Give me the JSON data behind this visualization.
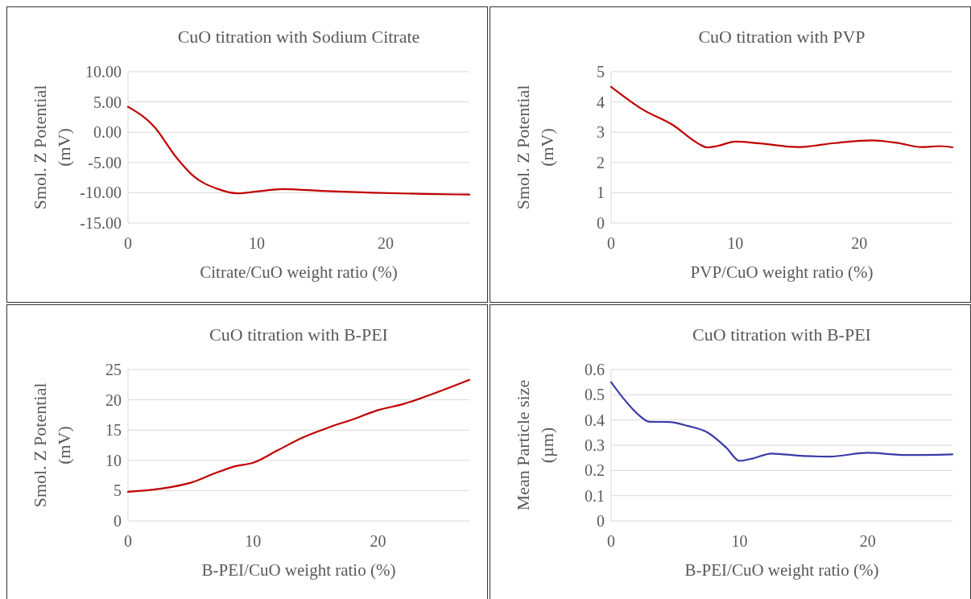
{
  "chart_data": [
    {
      "type": "line",
      "title": "CuO titration with Sodium Citrate",
      "xlabel": "Citrate/CuO weight ratio (%)",
      "ylabel": "Smol. Z Potential (mV)",
      "xlim": [
        0,
        26.5
      ],
      "xticks": [
        0,
        10,
        20
      ],
      "ylim": [
        -15,
        10
      ],
      "yticks": [
        {
          "value": 10,
          "label": "10.00"
        },
        {
          "value": 5,
          "label": "5.00"
        },
        {
          "value": 0,
          "label": "0.00"
        },
        {
          "value": -5,
          "label": "-5.00"
        },
        {
          "value": -10,
          "label": "-10.00"
        },
        {
          "value": -15,
          "label": "-15.00"
        }
      ],
      "grid": "y",
      "marker": "none",
      "line_style": "solid",
      "series": [
        {
          "color": "#c00000",
          "x": [
            0,
            2,
            3.8,
            5,
            7,
            8.5,
            10,
            12,
            15,
            19,
            23,
            26.5
          ],
          "values": [
            4.2,
            1.0,
            -4.3,
            -7.1,
            -9.4,
            -10.1,
            -9.8,
            -9.4,
            -9.7,
            -10.0,
            -10.2,
            -10.3
          ]
        }
      ]
    },
    {
      "type": "line",
      "title": "CuO titration with PVP",
      "xlabel": "PVP/CuO weight ratio (%)",
      "ylabel": "Smol. Z Potential (mV)",
      "xlim": [
        0,
        27.5
      ],
      "xticks": [
        0,
        10,
        20
      ],
      "ylim": [
        0,
        5
      ],
      "yticks": [
        0,
        1,
        2,
        3,
        4,
        5
      ],
      "grid": "y",
      "marker": "none",
      "line_style": "solid",
      "series": [
        {
          "color": "#c00000",
          "x": [
            0,
            2.5,
            5,
            7,
            7.7,
            8.5,
            10,
            12,
            15,
            18,
            21,
            23,
            25,
            26.5,
            27.5
          ],
          "values": [
            4.5,
            3.76,
            3.23,
            2.63,
            2.5,
            2.54,
            2.69,
            2.63,
            2.51,
            2.64,
            2.73,
            2.65,
            2.51,
            2.54,
            2.5
          ]
        }
      ]
    },
    {
      "type": "line",
      "title": "CuO titration with B-PEI",
      "xlabel": "B-PEI/CuO weight ratio (%)",
      "ylabel": "Smol. Z Potential (mV)",
      "xlim": [
        0,
        27.3
      ],
      "xticks": [
        0,
        10,
        20
      ],
      "ylim": [
        0,
        25
      ],
      "yticks": [
        0,
        5,
        10,
        15,
        20,
        25
      ],
      "grid": "y",
      "marker": "none",
      "line_style": "solid",
      "series": [
        {
          "color": "#c00000",
          "x": [
            0,
            2.5,
            5,
            7,
            8.5,
            10,
            12,
            14,
            16,
            18,
            20,
            22,
            24,
            27.3
          ],
          "values": [
            4.8,
            5.3,
            6.3,
            7.9,
            9.0,
            9.6,
            11.7,
            13.8,
            15.4,
            16.8,
            18.3,
            19.3,
            20.7,
            23.3
          ]
        }
      ]
    },
    {
      "type": "line",
      "title": "CuO titration with B-PEI",
      "xlabel": "B-PEI/CuO weight ratio (%)",
      "ylabel": "Mean Particle size (µm)",
      "xlim": [
        0,
        26.6
      ],
      "xticks": [
        0,
        10,
        20
      ],
      "ylim": [
        0,
        0.6
      ],
      "yticks": [
        0,
        0.1,
        0.2,
        0.3,
        0.4,
        0.5,
        0.6
      ],
      "grid": "y",
      "marker": "none",
      "line_style": "solid",
      "series": [
        {
          "color": "#3a3aa8",
          "x": [
            0,
            1,
            2,
            3,
            4.5,
            6,
            7.5,
            9,
            10,
            11,
            12.5,
            15,
            17,
            20,
            23,
            26.6
          ],
          "values": [
            0.55,
            0.483,
            0.427,
            0.393,
            0.392,
            0.376,
            0.351,
            0.289,
            0.238,
            0.247,
            0.267,
            0.257,
            0.255,
            0.27,
            0.261,
            0.264
          ]
        }
      ]
    }
  ]
}
